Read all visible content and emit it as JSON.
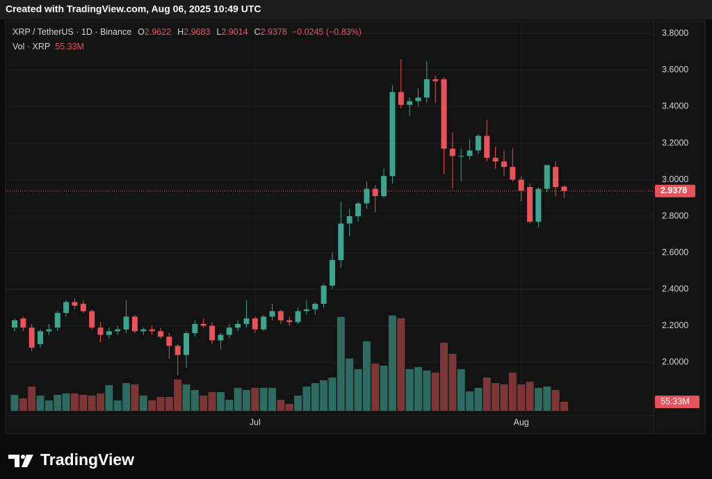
{
  "chart_data": {
    "type": "candlestick",
    "caption": "Created with TradingView.com, Aug 06, 2025 10:49 UTC",
    "title": "XRP / TetherUS · 1D · Binance",
    "brand": "TradingView",
    "ohlc_keys": [
      "O",
      "H",
      "L",
      "C"
    ],
    "change": {
      "value": -0.0245,
      "label": "−0.0245 (−0.83%)"
    },
    "categories": [
      null,
      null,
      null,
      null,
      null,
      null,
      null,
      null,
      null,
      null,
      null,
      null,
      null,
      null,
      null,
      null,
      null,
      null,
      null,
      null,
      null,
      null,
      null,
      null,
      null,
      null,
      null,
      null,
      "Jul",
      null,
      null,
      null,
      null,
      null,
      null,
      null,
      null,
      null,
      null,
      null,
      null,
      null,
      null,
      null,
      null,
      null,
      null,
      null,
      null,
      null,
      null,
      null,
      null,
      null,
      null,
      null,
      null,
      null,
      null,
      "Aug",
      null,
      null,
      null,
      null,
      null
    ],
    "open": [
      2.19,
      2.24,
      2.19,
      2.1,
      2.17,
      2.19,
      2.27,
      2.33,
      2.32,
      2.28,
      2.19,
      2.15,
      2.17,
      2.18,
      2.25,
      2.17,
      2.18,
      2.17,
      2.14,
      2.09,
      2.04,
      2.16,
      2.21,
      2.2,
      2.12,
      2.15,
      2.19,
      2.21,
      2.24,
      2.18,
      2.25,
      2.28,
      2.23,
      2.22,
      2.28,
      2.29,
      2.32,
      2.42,
      2.56,
      2.76,
      2.8,
      2.87,
      2.95,
      2.91,
      3.02,
      3.48,
      3.41,
      3.43,
      3.45,
      3.55,
      3.55,
      3.17,
      3.13,
      3.13,
      3.16,
      3.24,
      3.12,
      3.1,
      3.07,
      3.0,
      2.96,
      2.77,
      2.95,
      3.07,
      2.9622
    ],
    "high": [
      2.24,
      2.25,
      2.21,
      2.18,
      2.21,
      2.28,
      2.34,
      2.35,
      2.34,
      2.29,
      2.22,
      2.19,
      2.2,
      2.34,
      2.26,
      2.19,
      2.2,
      2.19,
      2.16,
      2.1,
      2.17,
      2.23,
      2.24,
      2.22,
      2.16,
      2.21,
      2.23,
      2.34,
      2.25,
      2.26,
      2.32,
      2.29,
      2.25,
      2.3,
      2.34,
      2.33,
      2.43,
      2.6,
      2.88,
      2.84,
      2.88,
      2.99,
      2.97,
      3.06,
      3.52,
      3.66,
      3.45,
      3.5,
      3.65,
      3.57,
      3.56,
      3.26,
      3.17,
      3.22,
      3.25,
      3.33,
      3.18,
      3.16,
      3.17,
      3.02,
      2.98,
      2.96,
      3.08,
      3.1,
      2.9683
    ],
    "low": [
      2.17,
      2.17,
      2.06,
      2.08,
      2.15,
      2.17,
      2.25,
      2.29,
      2.27,
      2.18,
      2.11,
      2.13,
      2.15,
      2.16,
      2.16,
      2.15,
      2.15,
      2.13,
      2.02,
      1.93,
      1.97,
      2.14,
      2.19,
      2.1,
      2.07,
      2.13,
      2.17,
      2.19,
      2.16,
      2.17,
      2.23,
      2.21,
      2.2,
      2.21,
      2.26,
      2.26,
      2.3,
      2.4,
      2.52,
      2.69,
      2.77,
      2.84,
      2.82,
      2.9,
      2.98,
      3.39,
      3.35,
      3.4,
      3.42,
      3.42,
      3.03,
      2.95,
      2.99,
      3.11,
      3.14,
      3.1,
      3.06,
      3.02,
      2.99,
      2.88,
      2.76,
      2.74,
      2.93,
      2.91,
      2.9014
    ],
    "close": [
      2.23,
      2.19,
      2.08,
      2.17,
      2.18,
      2.27,
      2.33,
      2.31,
      2.28,
      2.19,
      2.15,
      2.17,
      2.18,
      2.25,
      2.17,
      2.18,
      2.17,
      2.14,
      2.09,
      2.04,
      2.16,
      2.21,
      2.2,
      2.12,
      2.15,
      2.19,
      2.21,
      2.24,
      2.18,
      2.25,
      2.28,
      2.23,
      2.22,
      2.28,
      2.29,
      2.32,
      2.42,
      2.56,
      2.76,
      2.8,
      2.87,
      2.95,
      2.91,
      3.02,
      3.48,
      3.41,
      3.43,
      3.45,
      3.55,
      3.54,
      3.17,
      3.13,
      3.13,
      3.16,
      3.24,
      3.12,
      3.1,
      3.07,
      3.0,
      2.94,
      2.77,
      2.95,
      3.08,
      2.96,
      2.9378
    ],
    "volume": {
      "name": "Vol · XRP",
      "values": [
        98000000,
        77000000,
        149000000,
        94000000,
        64000000,
        98000000,
        107000000,
        107000000,
        98000000,
        94000000,
        107000000,
        158000000,
        64000000,
        170000000,
        162000000,
        94000000,
        64000000,
        85000000,
        85000000,
        192000000,
        162000000,
        128000000,
        94000000,
        115000000,
        115000000,
        68000000,
        141000000,
        128000000,
        141000000,
        141000000,
        141000000,
        68000000,
        43000000,
        94000000,
        149000000,
        170000000,
        187000000,
        204000000,
        575000000,
        320000000,
        256000000,
        426000000,
        290000000,
        277000000,
        584000000,
        567000000,
        256000000,
        268000000,
        247000000,
        234000000,
        417000000,
        349000000,
        256000000,
        119000000,
        141000000,
        204000000,
        170000000,
        162000000,
        234000000,
        162000000,
        179000000,
        141000000,
        149000000,
        128000000,
        55330000
      ],
      "last_value_label": "55.33M",
      "ylim": [
        0,
        600000000
      ]
    },
    "up_color": "#3ba58e",
    "down_color": "#e8525b",
    "up_volume_color": "#2d6a61",
    "down_volume_color": "#7c3636",
    "ylim": [
      1.73,
      3.87
    ],
    "yticks": [
      {
        "value": 2.0,
        "label": "2.0000"
      },
      {
        "value": 2.2,
        "label": "2.2000"
      },
      {
        "value": 2.4,
        "label": "2.4000"
      },
      {
        "value": 2.6,
        "label": "2.6000"
      },
      {
        "value": 2.8,
        "label": "2.8000"
      },
      {
        "value": 3.0,
        "label": "3.0000"
      },
      {
        "value": 3.2,
        "label": "3.2000"
      },
      {
        "value": 3.4,
        "label": "3.4000"
      },
      {
        "value": 3.6,
        "label": "3.6000"
      },
      {
        "value": 3.8,
        "label": "3.8000"
      }
    ],
    "grid": true
  }
}
